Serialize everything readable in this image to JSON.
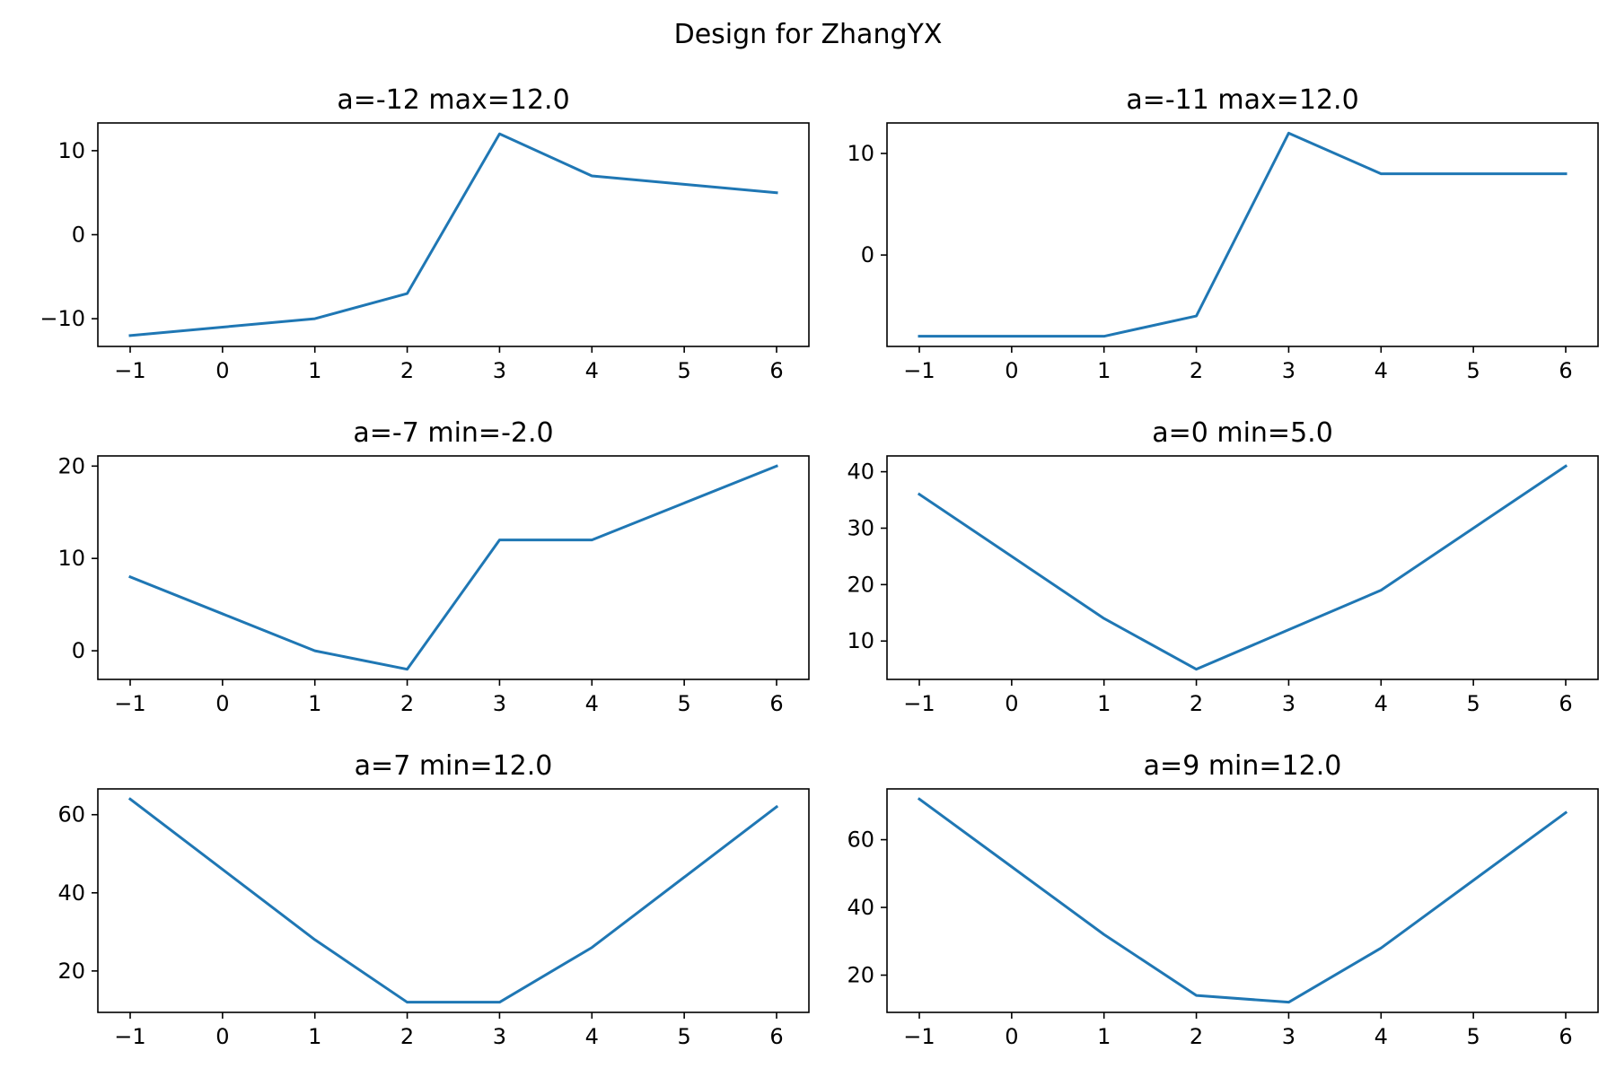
{
  "suptitle": "Design for ZhangYX",
  "line_color": "#1f77b4",
  "chart_data": [
    {
      "type": "line",
      "title": "a=-12 max=12.0",
      "x": [
        -1,
        0,
        1,
        2,
        3,
        4,
        5,
        6
      ],
      "y": [
        -12,
        -11,
        -10,
        -7,
        12,
        7,
        6,
        5
      ],
      "xlim": [
        -1.35,
        6.35
      ],
      "ylim": [
        -13.3,
        13.3
      ],
      "xticks": [
        -1,
        0,
        1,
        2,
        3,
        4,
        5,
        6
      ],
      "xticklabels": [
        "−1",
        "0",
        "1",
        "2",
        "3",
        "4",
        "5",
        "6"
      ],
      "yticks": [
        -10,
        0,
        10
      ],
      "yticklabels": [
        "−10",
        "0",
        "10"
      ],
      "grid": false
    },
    {
      "type": "line",
      "title": "a=-11 max=12.0",
      "x": [
        -1,
        0,
        1,
        2,
        3,
        4,
        5,
        6
      ],
      "y": [
        -8,
        -8,
        -8,
        -6,
        12,
        8,
        8,
        8
      ],
      "xlim": [
        -1.35,
        6.35
      ],
      "ylim": [
        -9.0,
        13.0
      ],
      "xticks": [
        -1,
        0,
        1,
        2,
        3,
        4,
        5,
        6
      ],
      "xticklabels": [
        "−1",
        "0",
        "1",
        "2",
        "3",
        "4",
        "5",
        "6"
      ],
      "yticks": [
        0,
        10
      ],
      "yticklabels": [
        "0",
        "10"
      ],
      "grid": false
    },
    {
      "type": "line",
      "title": "a=-7 min=-2.0",
      "x": [
        -1,
        0,
        1,
        2,
        3,
        4,
        5,
        6
      ],
      "y": [
        8,
        4,
        0,
        -2,
        12,
        12,
        16,
        20
      ],
      "xlim": [
        -1.35,
        6.35
      ],
      "ylim": [
        -3.1,
        21.1
      ],
      "xticks": [
        -1,
        0,
        1,
        2,
        3,
        4,
        5,
        6
      ],
      "xticklabels": [
        "−1",
        "0",
        "1",
        "2",
        "3",
        "4",
        "5",
        "6"
      ],
      "yticks": [
        0,
        10,
        20
      ],
      "yticklabels": [
        "0",
        "10",
        "20"
      ],
      "grid": false
    },
    {
      "type": "line",
      "title": "a=0 min=5.0",
      "x": [
        -1,
        0,
        1,
        2,
        3,
        4,
        5,
        6
      ],
      "y": [
        36,
        25,
        14,
        5,
        12,
        19,
        30,
        41
      ],
      "xlim": [
        -1.35,
        6.35
      ],
      "ylim": [
        3.2,
        42.8
      ],
      "xticks": [
        -1,
        0,
        1,
        2,
        3,
        4,
        5,
        6
      ],
      "xticklabels": [
        "−1",
        "0",
        "1",
        "2",
        "3",
        "4",
        "5",
        "6"
      ],
      "yticks": [
        10,
        20,
        30,
        40
      ],
      "yticklabels": [
        "10",
        "20",
        "30",
        "40"
      ],
      "grid": false
    },
    {
      "type": "line",
      "title": "a=7 min=12.0",
      "x": [
        -1,
        0,
        1,
        2,
        3,
        4,
        5,
        6
      ],
      "y": [
        64,
        46,
        28,
        12,
        12,
        26,
        44,
        62
      ],
      "xlim": [
        -1.35,
        6.35
      ],
      "ylim": [
        9.4,
        66.6
      ],
      "xticks": [
        -1,
        0,
        1,
        2,
        3,
        4,
        5,
        6
      ],
      "xticklabels": [
        "−1",
        "0",
        "1",
        "2",
        "3",
        "4",
        "5",
        "6"
      ],
      "yticks": [
        20,
        40,
        60
      ],
      "yticklabels": [
        "20",
        "40",
        "60"
      ],
      "grid": false
    },
    {
      "type": "line",
      "title": "a=9 min=12.0",
      "x": [
        -1,
        0,
        1,
        2,
        3,
        4,
        5,
        6
      ],
      "y": [
        72,
        52,
        32,
        14,
        12,
        28,
        48,
        68
      ],
      "xlim": [
        -1.35,
        6.35
      ],
      "ylim": [
        9.0,
        75.0
      ],
      "xticks": [
        -1,
        0,
        1,
        2,
        3,
        4,
        5,
        6
      ],
      "xticklabels": [
        "−1",
        "0",
        "1",
        "2",
        "3",
        "4",
        "5",
        "6"
      ],
      "yticks": [
        20,
        40,
        60
      ],
      "yticklabels": [
        "20",
        "40",
        "60"
      ],
      "grid": false
    }
  ]
}
